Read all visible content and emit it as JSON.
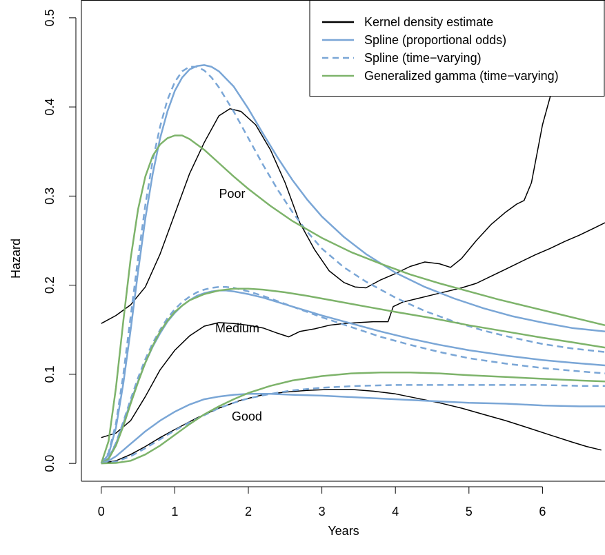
{
  "chart_data": {
    "type": "line",
    "xlabel": "Years",
    "ylabel": "Hazard",
    "xlim": [
      -0.27,
      6.85
    ],
    "ylim": [
      -0.02,
      0.52
    ],
    "x_ticks": [
      0,
      1,
      2,
      3,
      4,
      5,
      6
    ],
    "x_tick_labels": [
      "0",
      "1",
      "2",
      "3",
      "4",
      "5",
      "6"
    ],
    "y_ticks": [
      0.0,
      0.1,
      0.2,
      0.3,
      0.4,
      0.5
    ],
    "y_tick_labels": [
      "0.0",
      "0.1",
      "0.2",
      "0.3",
      "0.4",
      "0.5"
    ],
    "grid": false,
    "legend_position": "top-right",
    "legend": [
      {
        "label": "Kernel density estimate",
        "color": "#000000",
        "dash": "solid"
      },
      {
        "label": "Spline (proportional odds)",
        "color": "#7aa6d6",
        "dash": "solid"
      },
      {
        "label": "Spline (time−varying)",
        "color": "#7aa6d6",
        "dash": "dashed"
      },
      {
        "label": "Generalized gamma (time−varying)",
        "color": "#7db36a",
        "dash": "solid"
      }
    ],
    "group_labels": [
      {
        "text": "Poor",
        "x": 1.78,
        "y": 0.298
      },
      {
        "text": "Medium",
        "x": 1.85,
        "y": 0.147
      },
      {
        "text": "Good",
        "x": 1.98,
        "y": 0.048
      }
    ],
    "series": [
      {
        "name": "Kernel density estimate",
        "group": "Poor",
        "color": "#000000",
        "dash": "solid",
        "width": 1.5,
        "x": [
          0,
          0.2,
          0.4,
          0.6,
          0.8,
          1.0,
          1.2,
          1.4,
          1.6,
          1.75,
          1.9,
          2.1,
          2.3,
          2.5,
          2.7,
          2.9,
          3.1,
          3.3,
          3.45,
          3.6,
          3.8,
          4.0,
          4.2,
          4.4,
          4.6,
          4.75,
          4.9,
          5.1,
          5.3,
          5.5,
          5.65,
          5.75,
          5.85,
          6.0,
          6.2,
          6.4,
          6.6,
          6.85
        ],
        "y": [
          0.157,
          0.166,
          0.178,
          0.198,
          0.235,
          0.28,
          0.325,
          0.36,
          0.39,
          0.398,
          0.395,
          0.38,
          0.352,
          0.315,
          0.27,
          0.24,
          0.216,
          0.203,
          0.198,
          0.197,
          0.206,
          0.213,
          0.221,
          0.226,
          0.224,
          0.22,
          0.23,
          0.25,
          0.268,
          0.282,
          0.291,
          0.295,
          0.315,
          0.38,
          0.44,
          0.49,
          0.52,
          0.54
        ]
      },
      {
        "name": "Kernel density estimate",
        "group": "Medium",
        "color": "#000000",
        "dash": "solid",
        "width": 1.5,
        "x": [
          0,
          0.2,
          0.4,
          0.6,
          0.8,
          1.0,
          1.2,
          1.4,
          1.6,
          1.8,
          2.0,
          2.2,
          2.4,
          2.55,
          2.7,
          2.9,
          3.1,
          3.3,
          3.5,
          3.7,
          3.9,
          3.97,
          4.1,
          4.3,
          4.5,
          4.7,
          4.9,
          5.1,
          5.3,
          5.5,
          5.7,
          5.9,
          6.1,
          6.3,
          6.5,
          6.7,
          6.85
        ],
        "y": [
          0.029,
          0.034,
          0.048,
          0.075,
          0.105,
          0.127,
          0.143,
          0.154,
          0.158,
          0.157,
          0.155,
          0.152,
          0.146,
          0.142,
          0.148,
          0.151,
          0.155,
          0.157,
          0.158,
          0.159,
          0.159,
          0.176,
          0.181,
          0.185,
          0.189,
          0.193,
          0.197,
          0.202,
          0.21,
          0.218,
          0.226,
          0.234,
          0.241,
          0.249,
          0.256,
          0.264,
          0.27
        ]
      },
      {
        "name": "Kernel density estimate",
        "group": "Good",
        "color": "#000000",
        "dash": "solid",
        "width": 1.5,
        "x": [
          0,
          0.2,
          0.4,
          0.6,
          0.8,
          1.0,
          1.3,
          1.6,
          1.9,
          2.2,
          2.5,
          2.8,
          3.1,
          3.4,
          3.7,
          4.0,
          4.3,
          4.6,
          4.9,
          5.2,
          5.5,
          5.8,
          6.1,
          6.4,
          6.6,
          6.8
        ],
        "y": [
          0.0,
          0.003,
          0.01,
          0.019,
          0.029,
          0.038,
          0.051,
          0.062,
          0.071,
          0.077,
          0.08,
          0.082,
          0.083,
          0.083,
          0.081,
          0.078,
          0.073,
          0.068,
          0.062,
          0.055,
          0.048,
          0.04,
          0.032,
          0.024,
          0.019,
          0.015
        ]
      },
      {
        "name": "Spline (proportional odds)",
        "group": "Poor",
        "color": "#7aa6d6",
        "dash": "solid",
        "width": 2.5,
        "x": [
          0,
          0.1,
          0.2,
          0.3,
          0.4,
          0.5,
          0.6,
          0.7,
          0.8,
          0.9,
          1.0,
          1.1,
          1.2,
          1.3,
          1.4,
          1.5,
          1.6,
          1.8,
          2.0,
          2.2,
          2.4,
          2.6,
          2.8,
          3.0,
          3.3,
          3.6,
          4.0,
          4.4,
          4.8,
          5.2,
          5.6,
          6.0,
          6.4,
          6.85
        ],
        "y": [
          0.0,
          0.01,
          0.04,
          0.09,
          0.15,
          0.215,
          0.275,
          0.325,
          0.365,
          0.395,
          0.418,
          0.433,
          0.442,
          0.446,
          0.447,
          0.445,
          0.44,
          0.423,
          0.398,
          0.37,
          0.343,
          0.318,
          0.296,
          0.277,
          0.254,
          0.235,
          0.214,
          0.198,
          0.185,
          0.174,
          0.165,
          0.158,
          0.152,
          0.148
        ]
      },
      {
        "name": "Spline (time-varying)",
        "group": "Poor",
        "color": "#7aa6d6",
        "dash": "dashed",
        "width": 2.5,
        "x": [
          0,
          0.1,
          0.2,
          0.3,
          0.4,
          0.5,
          0.6,
          0.7,
          0.8,
          0.9,
          1.0,
          1.1,
          1.2,
          1.3,
          1.4,
          1.5,
          1.6,
          1.8,
          2.0,
          2.2,
          2.4,
          2.6,
          2.8,
          3.0,
          3.3,
          3.6,
          4.0,
          4.4,
          4.8,
          5.2,
          5.6,
          6.0,
          6.4,
          6.85
        ],
        "y": [
          0.0,
          0.012,
          0.045,
          0.1,
          0.165,
          0.23,
          0.29,
          0.34,
          0.378,
          0.408,
          0.428,
          0.44,
          0.445,
          0.445,
          0.441,
          0.433,
          0.422,
          0.395,
          0.365,
          0.335,
          0.307,
          0.282,
          0.26,
          0.241,
          0.22,
          0.204,
          0.186,
          0.171,
          0.159,
          0.149,
          0.141,
          0.134,
          0.129,
          0.125
        ]
      },
      {
        "name": "Generalized gamma (time-varying)",
        "group": "Poor",
        "color": "#7db36a",
        "dash": "solid",
        "width": 2.5,
        "x": [
          0,
          0.1,
          0.2,
          0.3,
          0.4,
          0.5,
          0.6,
          0.7,
          0.8,
          0.9,
          1.0,
          1.1,
          1.2,
          1.4,
          1.6,
          1.8,
          2.0,
          2.3,
          2.6,
          3.0,
          3.4,
          3.8,
          4.2,
          4.6,
          5.0,
          5.4,
          5.8,
          6.2,
          6.6,
          6.85
        ],
        "y": [
          0.0,
          0.025,
          0.085,
          0.16,
          0.23,
          0.285,
          0.322,
          0.345,
          0.358,
          0.365,
          0.368,
          0.368,
          0.364,
          0.352,
          0.337,
          0.322,
          0.308,
          0.289,
          0.272,
          0.253,
          0.237,
          0.224,
          0.212,
          0.202,
          0.193,
          0.184,
          0.176,
          0.168,
          0.16,
          0.155
        ]
      },
      {
        "name": "Spline (proportional odds)",
        "group": "Medium",
        "color": "#7aa6d6",
        "dash": "solid",
        "width": 2.5,
        "x": [
          0,
          0.1,
          0.2,
          0.3,
          0.4,
          0.5,
          0.6,
          0.7,
          0.8,
          0.9,
          1.0,
          1.1,
          1.2,
          1.3,
          1.4,
          1.5,
          1.6,
          1.7,
          1.8,
          2.0,
          2.2,
          2.4,
          2.6,
          2.8,
          3.0,
          3.4,
          3.8,
          4.2,
          4.6,
          5.0,
          5.5,
          6.0,
          6.4,
          6.85
        ],
        "y": [
          0.0,
          0.006,
          0.022,
          0.045,
          0.069,
          0.092,
          0.113,
          0.131,
          0.146,
          0.159,
          0.169,
          0.177,
          0.183,
          0.188,
          0.191,
          0.193,
          0.194,
          0.194,
          0.193,
          0.19,
          0.186,
          0.181,
          0.176,
          0.171,
          0.166,
          0.157,
          0.148,
          0.14,
          0.133,
          0.127,
          0.121,
          0.116,
          0.113,
          0.11
        ]
      },
      {
        "name": "Spline (time-varying)",
        "group": "Medium",
        "color": "#7aa6d6",
        "dash": "dashed",
        "width": 2.5,
        "x": [
          0,
          0.1,
          0.2,
          0.3,
          0.4,
          0.5,
          0.6,
          0.7,
          0.8,
          0.9,
          1.0,
          1.1,
          1.2,
          1.3,
          1.4,
          1.5,
          1.6,
          1.7,
          1.8,
          2.0,
          2.2,
          2.4,
          2.6,
          2.8,
          3.0,
          3.4,
          3.8,
          4.2,
          4.6,
          5.0,
          5.5,
          6.0,
          6.4,
          6.85
        ],
        "y": [
          0.0,
          0.006,
          0.023,
          0.047,
          0.072,
          0.096,
          0.117,
          0.135,
          0.15,
          0.163,
          0.173,
          0.181,
          0.187,
          0.192,
          0.195,
          0.197,
          0.198,
          0.198,
          0.197,
          0.193,
          0.188,
          0.182,
          0.176,
          0.17,
          0.164,
          0.153,
          0.142,
          0.133,
          0.125,
          0.118,
          0.112,
          0.107,
          0.104,
          0.101
        ]
      },
      {
        "name": "Generalized gamma (time-varying)",
        "group": "Medium",
        "color": "#7db36a",
        "dash": "solid",
        "width": 2.5,
        "x": [
          0,
          0.1,
          0.2,
          0.3,
          0.4,
          0.5,
          0.6,
          0.7,
          0.8,
          0.9,
          1.0,
          1.1,
          1.2,
          1.4,
          1.6,
          1.8,
          2.0,
          2.2,
          2.5,
          2.8,
          3.2,
          3.6,
          4.0,
          4.5,
          5.0,
          5.5,
          6.0,
          6.4,
          6.85
        ],
        "y": [
          0.0,
          0.005,
          0.02,
          0.042,
          0.067,
          0.091,
          0.113,
          0.132,
          0.148,
          0.16,
          0.17,
          0.177,
          0.183,
          0.19,
          0.194,
          0.196,
          0.196,
          0.195,
          0.192,
          0.188,
          0.182,
          0.176,
          0.17,
          0.163,
          0.155,
          0.148,
          0.141,
          0.136,
          0.13
        ]
      },
      {
        "name": "Spline (proportional odds)",
        "group": "Good",
        "color": "#7aa6d6",
        "dash": "solid",
        "width": 2.5,
        "x": [
          0,
          0.1,
          0.2,
          0.3,
          0.4,
          0.5,
          0.6,
          0.8,
          1.0,
          1.2,
          1.4,
          1.6,
          1.8,
          2.0,
          2.3,
          2.6,
          3.0,
          3.5,
          4.0,
          4.5,
          5.0,
          5.5,
          6.0,
          6.5,
          6.85
        ],
        "y": [
          0.0,
          0.003,
          0.008,
          0.015,
          0.022,
          0.029,
          0.036,
          0.048,
          0.058,
          0.066,
          0.072,
          0.075,
          0.077,
          0.078,
          0.078,
          0.077,
          0.076,
          0.074,
          0.072,
          0.07,
          0.068,
          0.067,
          0.065,
          0.064,
          0.064
        ]
      },
      {
        "name": "Spline (time-varying)",
        "group": "Good",
        "color": "#7aa6d6",
        "dash": "dashed",
        "width": 2.5,
        "x": [
          0,
          0.2,
          0.4,
          0.6,
          0.8,
          1.0,
          1.2,
          1.4,
          1.6,
          1.8,
          2.0,
          2.3,
          2.6,
          3.0,
          3.5,
          4.0,
          4.5,
          5.0,
          5.5,
          6.0,
          6.5,
          6.85
        ],
        "y": [
          0.0,
          0.002,
          0.008,
          0.017,
          0.027,
          0.037,
          0.046,
          0.054,
          0.062,
          0.068,
          0.073,
          0.078,
          0.082,
          0.085,
          0.087,
          0.088,
          0.088,
          0.088,
          0.088,
          0.088,
          0.087,
          0.087
        ]
      },
      {
        "name": "Generalized gamma (time-varying)",
        "group": "Good",
        "color": "#7db36a",
        "dash": "solid",
        "width": 2.5,
        "x": [
          0,
          0.2,
          0.4,
          0.6,
          0.8,
          1.0,
          1.2,
          1.4,
          1.6,
          1.8,
          2.0,
          2.3,
          2.6,
          3.0,
          3.4,
          3.8,
          4.2,
          4.6,
          5.0,
          5.5,
          6.0,
          6.5,
          6.85
        ],
        "y": [
          0.0,
          0.0005,
          0.003,
          0.01,
          0.02,
          0.032,
          0.044,
          0.055,
          0.064,
          0.072,
          0.079,
          0.087,
          0.093,
          0.098,
          0.101,
          0.102,
          0.102,
          0.101,
          0.099,
          0.097,
          0.095,
          0.093,
          0.092
        ]
      }
    ]
  }
}
